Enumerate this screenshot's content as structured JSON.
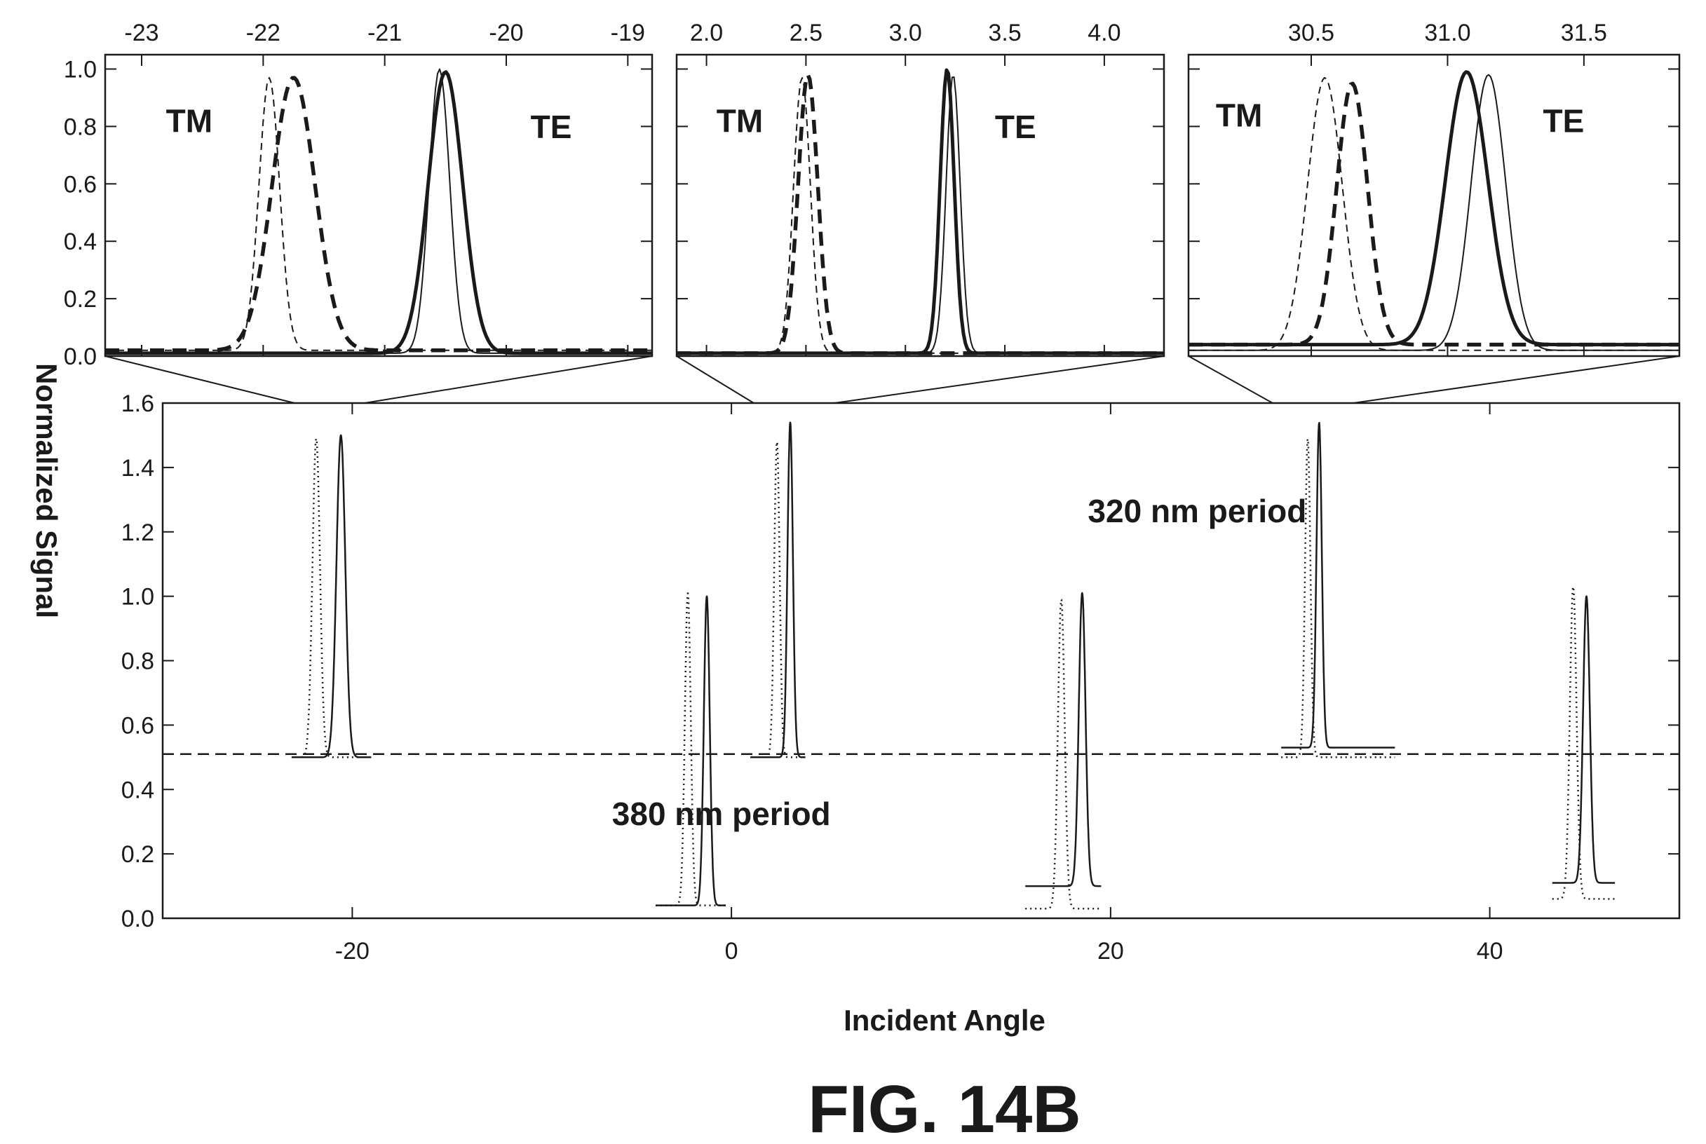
{
  "figure_label": "FIG. 14B",
  "y_axis_title": "Normalized Signal",
  "x_axis_title": "Incident Angle",
  "chart_data": [
    {
      "type": "line",
      "x_ticks": [
        -23,
        -22,
        -21,
        -20,
        -19
      ],
      "x_tick_labels": [
        "-23",
        "-22",
        "-21",
        "-20",
        "-19"
      ],
      "xlim": [
        -23.3,
        -18.8
      ],
      "ylim": [
        0,
        1.05
      ],
      "y_ticks": [
        0.0,
        0.2,
        0.4,
        0.6,
        0.8,
        1.0
      ],
      "y_tick_labels": [
        "0.0",
        "0.2",
        "0.4",
        "0.6",
        "0.8",
        "1.0"
      ],
      "annotations": [
        {
          "text": "TM",
          "x": -22.8,
          "y": 0.78
        },
        {
          "text": "TE",
          "x": -19.8,
          "y": 0.76
        }
      ],
      "series": [
        {
          "style": "thin-dashed",
          "center": -21.95,
          "width": 0.12,
          "peak": 0.97,
          "baseline": 0.02
        },
        {
          "style": "thick-dashed",
          "center": -21.75,
          "width": 0.25,
          "peak": 0.97,
          "baseline": 0.02
        },
        {
          "style": "thin-solid",
          "center": -20.55,
          "width": 0.12,
          "peak": 1.0,
          "baseline": 0.01
        },
        {
          "style": "thick-solid",
          "center": -20.5,
          "width": 0.2,
          "peak": 0.99,
          "baseline": 0.01
        }
      ]
    },
    {
      "type": "line",
      "x_ticks": [
        2.0,
        2.5,
        3.0,
        3.5,
        4.0
      ],
      "x_tick_labels": [
        "2.0",
        "2.5",
        "3.0",
        "3.5",
        "4.0"
      ],
      "xlim": [
        1.85,
        4.3
      ],
      "ylim": [
        0,
        1.05
      ],
      "y_ticks": [
        0.0,
        0.2,
        0.4,
        0.6,
        0.8,
        1.0
      ],
      "y_tick_labels": [
        "0.0",
        "0.2",
        "0.4",
        "0.6",
        "0.8",
        "1.0"
      ],
      "annotations": [
        {
          "text": "TM",
          "x": 2.05,
          "y": 0.78
        },
        {
          "text": "TE",
          "x": 3.45,
          "y": 0.76
        }
      ],
      "series": [
        {
          "style": "thin-dashed",
          "center": 2.48,
          "width": 0.06,
          "peak": 0.97,
          "baseline": 0.01
        },
        {
          "style": "thick-dashed",
          "center": 2.51,
          "width": 0.07,
          "peak": 0.98,
          "baseline": 0.01
        },
        {
          "style": "thin-solid",
          "center": 3.24,
          "width": 0.05,
          "peak": 0.98,
          "baseline": 0.01
        },
        {
          "style": "thick-solid",
          "center": 3.21,
          "width": 0.05,
          "peak": 1.0,
          "baseline": 0.01
        }
      ]
    },
    {
      "type": "line",
      "x_ticks": [
        30.5,
        31.0,
        31.5
      ],
      "x_tick_labels": [
        "30.5",
        "31.0",
        "31.5"
      ],
      "xlim": [
        30.05,
        31.85
      ],
      "ylim": [
        0,
        1.05
      ],
      "y_ticks": [
        0.0,
        0.2,
        0.4,
        0.6,
        0.8,
        1.0
      ],
      "y_tick_labels": [
        "0.0",
        "0.2",
        "0.4",
        "0.6",
        "0.8",
        "1.0"
      ],
      "annotations": [
        {
          "text": "TM",
          "x": 30.15,
          "y": 0.8
        },
        {
          "text": "TE",
          "x": 31.35,
          "y": 0.78
        }
      ],
      "series": [
        {
          "style": "thin-dashed",
          "center": 30.55,
          "width": 0.09,
          "peak": 0.97,
          "baseline": 0.02
        },
        {
          "style": "thick-dashed",
          "center": 30.65,
          "width": 0.08,
          "peak": 0.95,
          "baseline": 0.04
        },
        {
          "style": "thin-solid",
          "center": 31.15,
          "width": 0.09,
          "peak": 0.98,
          "baseline": 0.02
        },
        {
          "style": "thick-solid",
          "center": 31.07,
          "width": 0.11,
          "peak": 0.99,
          "baseline": 0.04
        }
      ]
    },
    {
      "type": "line",
      "x_ticks": [
        -20,
        0,
        20,
        40
      ],
      "x_tick_labels": [
        "-20",
        "0",
        "20",
        "40"
      ],
      "xlim": [
        -30,
        50
      ],
      "ylim": [
        0,
        1.6
      ],
      "y_ticks": [
        0.0,
        0.2,
        0.4,
        0.6,
        0.8,
        1.0,
        1.2,
        1.4,
        1.6
      ],
      "y_tick_labels": [
        "0.0",
        "0.2",
        "0.4",
        "0.6",
        "0.8",
        "1.0",
        "1.2",
        "1.4",
        "1.6"
      ],
      "reference_line": {
        "y": 0.51,
        "style": "dashed"
      },
      "annotations": [
        {
          "text": "320 nm period",
          "x": 18.8,
          "y": 1.23
        },
        {
          "text": "380 nm period",
          "x": -6.3,
          "y": 0.29
        }
      ],
      "series": [
        {
          "style": "dotted",
          "center": -21.9,
          "width": 0.28,
          "peak": 1.49,
          "baseline": 0.5,
          "xmin": -23.2,
          "xmax": -19.0
        },
        {
          "style": "solid",
          "center": -20.6,
          "width": 0.33,
          "peak": 1.5,
          "baseline": 0.5,
          "xmin": -23.2,
          "xmax": -19.0
        },
        {
          "style": "dotted",
          "center": 2.4,
          "width": 0.2,
          "peak": 1.48,
          "baseline": 0.5,
          "xmin": 1.0,
          "xmax": 3.9
        },
        {
          "style": "solid",
          "center": 3.1,
          "width": 0.2,
          "peak": 1.54,
          "baseline": 0.5,
          "xmin": 1.0,
          "xmax": 3.9
        },
        {
          "style": "dotted",
          "center": 30.4,
          "width": 0.2,
          "peak": 1.49,
          "baseline": 0.5,
          "xmin": 29.0,
          "xmax": 35.0
        },
        {
          "style": "solid",
          "center": 31.0,
          "width": 0.2,
          "peak": 1.54,
          "baseline": 0.53,
          "xmin": 29.0,
          "xmax": 35.0
        },
        {
          "style": "dotted",
          "center": -2.3,
          "width": 0.22,
          "peak": 1.01,
          "baseline": 0.04,
          "xmin": -4.0,
          "xmax": -0.3
        },
        {
          "style": "solid",
          "center": -1.3,
          "width": 0.22,
          "peak": 1.0,
          "baseline": 0.04,
          "xmin": -4.0,
          "xmax": -0.3
        },
        {
          "style": "dotted",
          "center": 17.4,
          "width": 0.25,
          "peak": 0.99,
          "baseline": 0.03,
          "xmin": 15.5,
          "xmax": 19.5
        },
        {
          "style": "solid",
          "center": 18.5,
          "width": 0.25,
          "peak": 1.01,
          "baseline": 0.1,
          "xmin": 15.5,
          "xmax": 19.5
        },
        {
          "style": "dotted",
          "center": 44.4,
          "width": 0.25,
          "peak": 1.03,
          "baseline": 0.06,
          "xmin": 43.3,
          "xmax": 46.6
        },
        {
          "style": "solid",
          "center": 45.1,
          "width": 0.25,
          "peak": 1.0,
          "baseline": 0.11,
          "xmin": 43.3,
          "xmax": 46.6
        }
      ]
    }
  ]
}
